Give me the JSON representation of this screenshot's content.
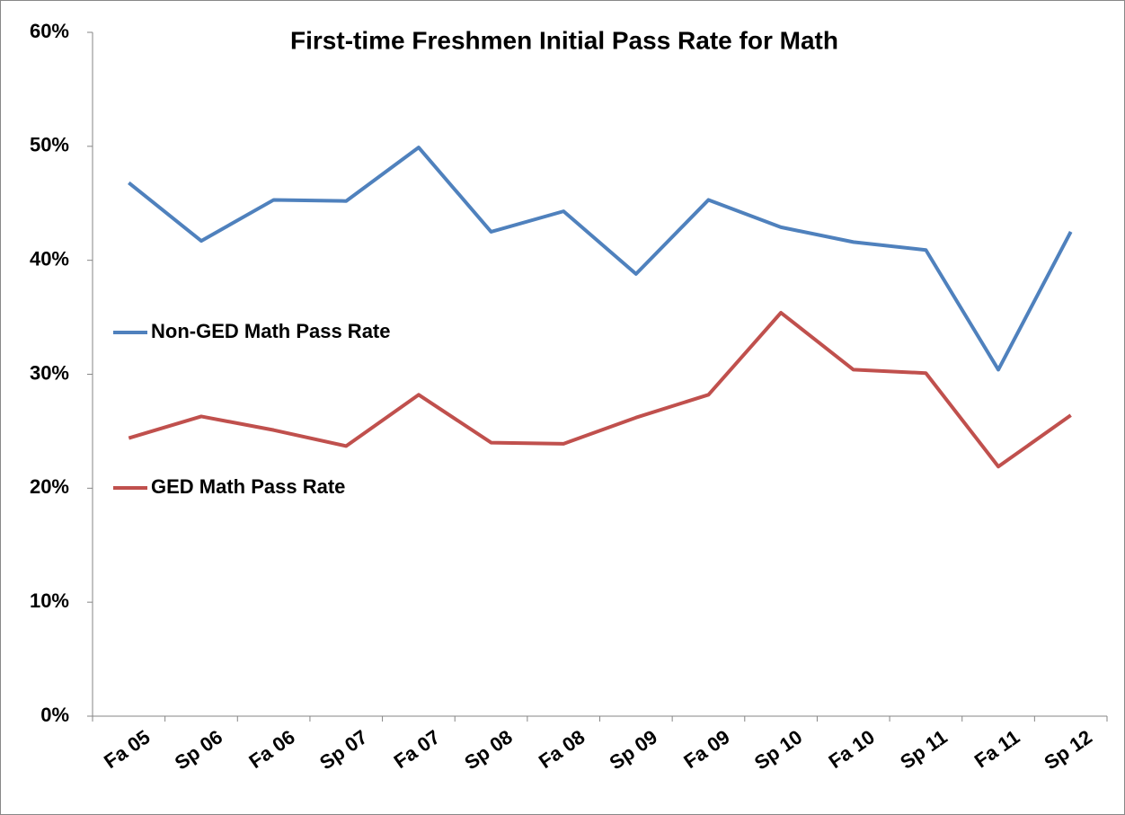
{
  "chart_data": {
    "type": "line",
    "title": "First-time Freshmen Initial Pass Rate for Math",
    "categories": [
      "Fa 05",
      "Sp 06",
      "Fa 06",
      "Sp 07",
      "Fa 07",
      "Sp 08",
      "Fa 08",
      "Sp 09",
      "Fa 09",
      "Sp 10",
      "Fa 10",
      "Sp 11",
      "Fa 11",
      "Sp 12"
    ],
    "series": [
      {
        "name": "Non-GED Math Pass Rate",
        "color": "#4f81bd",
        "values": [
          46.8,
          41.7,
          45.3,
          45.2,
          49.9,
          42.5,
          44.3,
          38.8,
          45.3,
          42.9,
          41.6,
          40.9,
          30.4,
          42.5
        ]
      },
      {
        "name": "GED Math Pass Rate",
        "color": "#c0504d",
        "values": [
          24.4,
          26.3,
          25.1,
          23.7,
          28.2,
          24.0,
          23.9,
          26.2,
          28.2,
          35.4,
          30.4,
          30.1,
          21.9,
          26.4
        ]
      }
    ],
    "ylim": [
      0,
      60
    ],
    "yticks": [
      {
        "value": 0,
        "label": "0%"
      },
      {
        "value": 10,
        "label": "10%"
      },
      {
        "value": 20,
        "label": "20%"
      },
      {
        "value": 30,
        "label": "30%"
      },
      {
        "value": 40,
        "label": "40%"
      },
      {
        "value": 50,
        "label": "50%"
      },
      {
        "value": 60,
        "label": "60%"
      }
    ],
    "grid": false,
    "legend": "left"
  }
}
